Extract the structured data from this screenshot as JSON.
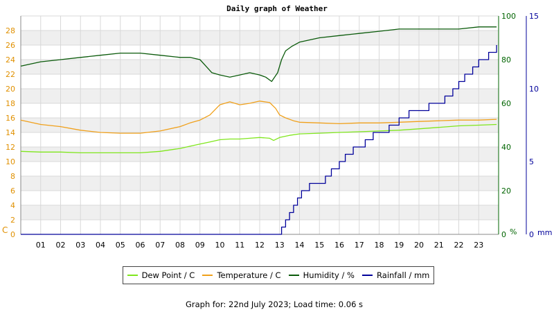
{
  "title": "Daily graph of Weather",
  "footer": "Graph for: 22nd July 2023; Load time: 0.06 s",
  "colors": {
    "dew": "#7fe61c",
    "temp": "#f0a01a",
    "hum": "#0a5a0a",
    "rain": "#00009a",
    "left_axis": "#e09000",
    "hum_axis": "#006400",
    "rain_axis": "#00009a"
  },
  "legend": [
    {
      "label": "Dew Point / C",
      "color": "#7fe61c"
    },
    {
      "label": "Temperature / C",
      "color": "#f0a01a"
    },
    {
      "label": "Humidity / %",
      "color": "#0a5a0a"
    },
    {
      "label": "Rainfall / mm",
      "color": "#00009a"
    }
  ],
  "chart_data": {
    "type": "line",
    "title": "Daily graph of Weather",
    "x_ticks": [
      "01",
      "02",
      "03",
      "04",
      "05",
      "06",
      "07",
      "08",
      "09",
      "10",
      "11",
      "12",
      "13",
      "14",
      "15",
      "16",
      "17",
      "18",
      "19",
      "20",
      "21",
      "22",
      "23"
    ],
    "xlim": [
      0,
      24
    ],
    "grid": true,
    "axes": {
      "left": {
        "unit": "C",
        "ylim": [
          0,
          30
        ],
        "ticks": [
          0,
          2,
          4,
          6,
          8,
          10,
          12,
          14,
          16,
          18,
          20,
          22,
          24,
          26,
          28
        ]
      },
      "right1": {
        "unit": "%",
        "ylim": [
          0,
          100
        ],
        "ticks": [
          0,
          20,
          40,
          60,
          80,
          100
        ]
      },
      "right2": {
        "unit": "mm",
        "ylim": [
          0,
          15
        ],
        "ticks": [
          0,
          5,
          10,
          15
        ]
      }
    },
    "series": [
      {
        "name": "Dew Point / C",
        "axis": "left",
        "color": "#7fe61c",
        "x": [
          0,
          1,
          2,
          3,
          4,
          5,
          6,
          7,
          8,
          8.5,
          9,
          9.5,
          10,
          10.5,
          11,
          11.5,
          12,
          12.5,
          12.7,
          13,
          13.5,
          14,
          15,
          16,
          17,
          18,
          19,
          20,
          21,
          22,
          23,
          23.9
        ],
        "y": [
          11.4,
          11.3,
          11.3,
          11.2,
          11.2,
          11.2,
          11.2,
          11.4,
          11.8,
          12.1,
          12.4,
          12.7,
          13.0,
          13.1,
          13.1,
          13.2,
          13.3,
          13.2,
          12.9,
          13.3,
          13.6,
          13.8,
          13.9,
          14.0,
          14.1,
          14.2,
          14.3,
          14.5,
          14.7,
          14.9,
          15.0,
          15.1
        ]
      },
      {
        "name": "Temperature / C",
        "axis": "left",
        "color": "#f0a01a",
        "x": [
          0,
          1,
          2,
          3,
          4,
          5,
          6,
          7,
          8,
          8.5,
          9,
          9.5,
          10,
          10.5,
          11,
          11.5,
          12,
          12.5,
          12.8,
          13,
          13.3,
          13.7,
          14,
          15,
          16,
          17,
          18,
          19,
          20,
          21,
          22,
          23,
          23.9
        ],
        "y": [
          15.7,
          15.1,
          14.8,
          14.3,
          14.0,
          13.9,
          13.9,
          14.2,
          14.8,
          15.3,
          15.7,
          16.4,
          17.8,
          18.2,
          17.8,
          18.0,
          18.3,
          18.1,
          17.3,
          16.4,
          16.0,
          15.6,
          15.4,
          15.3,
          15.2,
          15.3,
          15.3,
          15.4,
          15.5,
          15.6,
          15.7,
          15.7,
          15.8
        ]
      },
      {
        "name": "Humidity / %",
        "axis": "right1",
        "color": "#0a5a0a",
        "x": [
          0,
          0.5,
          1,
          2,
          3,
          4,
          5,
          6,
          7,
          8,
          8.5,
          9,
          9.3,
          9.6,
          10,
          10.5,
          11,
          11.5,
          12,
          12.3,
          12.6,
          12.9,
          13.1,
          13.3,
          13.6,
          14,
          14.5,
          15,
          16,
          17,
          18,
          19,
          20,
          21,
          22,
          23,
          23.9
        ],
        "y": [
          77,
          78,
          79,
          80,
          81,
          82,
          83,
          83,
          82,
          81,
          81,
          80,
          77,
          74,
          73,
          72,
          73,
          74,
          73,
          72,
          70,
          74,
          80,
          84,
          86,
          88,
          89,
          90,
          91,
          92,
          93,
          94,
          94,
          94,
          94,
          95,
          95
        ]
      },
      {
        "name": "Rainfall / mm",
        "axis": "right2",
        "color": "#00009a",
        "x": [
          0,
          12.9,
          13.1,
          13.3,
          13.5,
          13.7,
          13.9,
          14.1,
          14.5,
          15,
          15.3,
          15.6,
          16,
          16.3,
          16.7,
          17,
          17.3,
          17.7,
          18,
          18.5,
          19,
          19.5,
          20,
          20.5,
          21,
          21.3,
          21.7,
          22,
          22.3,
          22.7,
          23,
          23.5,
          23.9
        ],
        "y": [
          0,
          0,
          0.5,
          1.0,
          1.5,
          2.0,
          2.5,
          3.0,
          3.5,
          3.5,
          4.0,
          4.5,
          5.0,
          5.5,
          6.0,
          6.0,
          6.5,
          7.0,
          7.0,
          7.5,
          8.0,
          8.5,
          8.5,
          9.0,
          9.0,
          9.5,
          10.0,
          10.5,
          11.0,
          11.5,
          12.0,
          12.5,
          13.0
        ]
      }
    ]
  }
}
